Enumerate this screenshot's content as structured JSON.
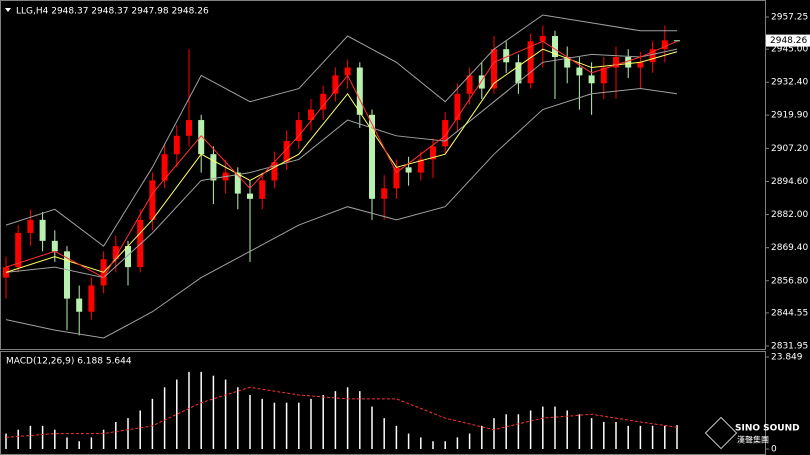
{
  "chart_data": [
    {
      "type": "candlestick",
      "title": "LLG,H4  2948.37 2948.37 2947.98 2948.26",
      "open": [
        2858,
        2862,
        2875,
        2880,
        2872,
        2868,
        2850,
        2845,
        2855,
        2865,
        2870,
        2862,
        2880,
        2895,
        2905,
        2912,
        2918,
        2905,
        2895,
        2898,
        2890,
        2888,
        2895,
        2902,
        2910,
        2918,
        2922,
        2928,
        2935,
        2938,
        2920,
        2888,
        2892,
        2900,
        2898,
        2903,
        2908,
        2918,
        2928,
        2935,
        2930,
        2945,
        2940,
        2932,
        2948,
        2950,
        2942,
        2938,
        2935,
        2932,
        2938,
        2942,
        2938,
        2940,
        2945,
        2948.37
      ],
      "high": [
        2866,
        2878,
        2884,
        2883,
        2876,
        2870,
        2855,
        2858,
        2868,
        2874,
        2872,
        2884,
        2898,
        2909,
        2916,
        2945,
        2920,
        2908,
        2903,
        2900,
        2895,
        2898,
        2906,
        2914,
        2921,
        2926,
        2931,
        2938,
        2941,
        2940,
        2922,
        2897,
        2903,
        2904,
        2906,
        2911,
        2921,
        2932,
        2938,
        2940,
        2950,
        2948,
        2943,
        2951,
        2954,
        2952,
        2946,
        2942,
        2940,
        2942,
        2946,
        2945,
        2944,
        2948,
        2954,
        2948.37
      ],
      "low": [
        2850,
        2860,
        2870,
        2868,
        2864,
        2838,
        2836,
        2842,
        2852,
        2860,
        2855,
        2860,
        2876,
        2892,
        2900,
        2908,
        2898,
        2886,
        2890,
        2884,
        2864,
        2884,
        2892,
        2899,
        2907,
        2914,
        2918,
        2925,
        2930,
        2915,
        2880,
        2880,
        2888,
        2893,
        2895,
        2896,
        2905,
        2914,
        2924,
        2926,
        2928,
        2936,
        2928,
        2930,
        2938,
        2926,
        2932,
        2922,
        2920,
        2926,
        2926,
        2934,
        2930,
        2936,
        2940,
        2947.98
      ],
      "close": [
        2862,
        2875,
        2880,
        2872,
        2868,
        2850,
        2845,
        2855,
        2865,
        2870,
        2862,
        2880,
        2895,
        2905,
        2912,
        2918,
        2905,
        2895,
        2898,
        2890,
        2888,
        2895,
        2902,
        2910,
        2918,
        2922,
        2928,
        2935,
        2938,
        2920,
        2888,
        2892,
        2900,
        2898,
        2903,
        2908,
        2918,
        2928,
        2935,
        2930,
        2945,
        2940,
        2932,
        2948,
        2950,
        2942,
        2938,
        2935,
        2932,
        2938,
        2942,
        2938,
        2940,
        2945,
        2948.37,
        2948.26
      ],
      "colors": {
        "up": "#ff0000",
        "down": "#b8f0b0"
      },
      "overlays": {
        "x": [
          0,
          4,
          8,
          12,
          16,
          20,
          24,
          28,
          32,
          36,
          40,
          44,
          48,
          52,
          55
        ],
        "series": [
          {
            "color": "#a0a0a0",
            "values": [
              2878,
              2884,
              2870,
              2900,
              2935,
              2925,
              2930,
              2950,
              2940,
              2925,
              2945,
              2958,
              2955,
              2952,
              2952
            ]
          },
          {
            "color": "#a0a0a0",
            "values": [
              2860,
              2862,
              2858,
              2875,
              2895,
              2898,
              2903,
              2918,
              2912,
              2910,
              2925,
              2940,
              2943,
              2942,
              2945
            ]
          },
          {
            "color": "#a0a0a0",
            "values": [
              2842,
              2838,
              2835,
              2845,
              2858,
              2868,
              2878,
              2885,
              2880,
              2885,
              2905,
              2922,
              2928,
              2930,
              2928
            ]
          },
          {
            "color": "#ffff66",
            "values": [
              2860,
              2866,
              2860,
              2880,
              2905,
              2895,
              2905,
              2928,
              2900,
              2905,
              2932,
              2945,
              2938,
              2940,
              2944
            ]
          },
          {
            "color": "#ff3030",
            "values": [
              2862,
              2868,
              2858,
              2890,
              2912,
              2892,
              2912,
              2935,
              2898,
              2912,
              2940,
              2948,
              2936,
              2942,
              2948
            ]
          }
        ]
      },
      "last_price": 2948.26,
      "ylim": [
        2830.43,
        2962.96
      ],
      "yticks": [
        2957.25,
        {
          "value": 2945,
          "label": "2945.00"
        },
        {
          "value": 2932.4,
          "label": "2932.40"
        },
        {
          "value": 2919.9,
          "label": "2919.90"
        },
        {
          "value": 2907.2,
          "label": "2907.20"
        },
        {
          "value": 2894.6,
          "label": "2894.60"
        },
        {
          "value": 2882,
          "label": "2882.00"
        },
        {
          "value": 2869.4,
          "label": "2869.40"
        },
        {
          "value": 2856.8,
          "label": "2856.80"
        },
        2844.55,
        2831.95
      ]
    },
    {
      "type": "macd",
      "title": "MACD(12,26,9) 6.188 5.644",
      "values": [
        4,
        5,
        6,
        6,
        5,
        3,
        2,
        3,
        5,
        7,
        8,
        10,
        13,
        16,
        18,
        20,
        20,
        19,
        18,
        16,
        14,
        13,
        12,
        12,
        12,
        13,
        14,
        15,
        16,
        15,
        11,
        8,
        6,
        4,
        3,
        2,
        2,
        3,
        4,
        6,
        8,
        9,
        9,
        10,
        11,
        11,
        10,
        9,
        8,
        7,
        7,
        6,
        6,
        6,
        6,
        6.188
      ],
      "color": "#ffffff",
      "signal": {
        "x": [
          0,
          4,
          8,
          12,
          16,
          20,
          24,
          28,
          32,
          36,
          40,
          44,
          48,
          52,
          55
        ],
        "color": "#ff3030",
        "values": [
          3,
          4,
          4,
          6,
          12,
          16,
          14,
          13,
          13,
          8,
          5,
          8,
          9,
          7,
          5.644
        ]
      },
      "ylim": [
        -1.04,
        24.89
      ],
      "yticks": [
        23.849,
        0
      ]
    }
  ],
  "watermark": {
    "brand": "SINO SOUND",
    "name": "漢聲集團"
  }
}
